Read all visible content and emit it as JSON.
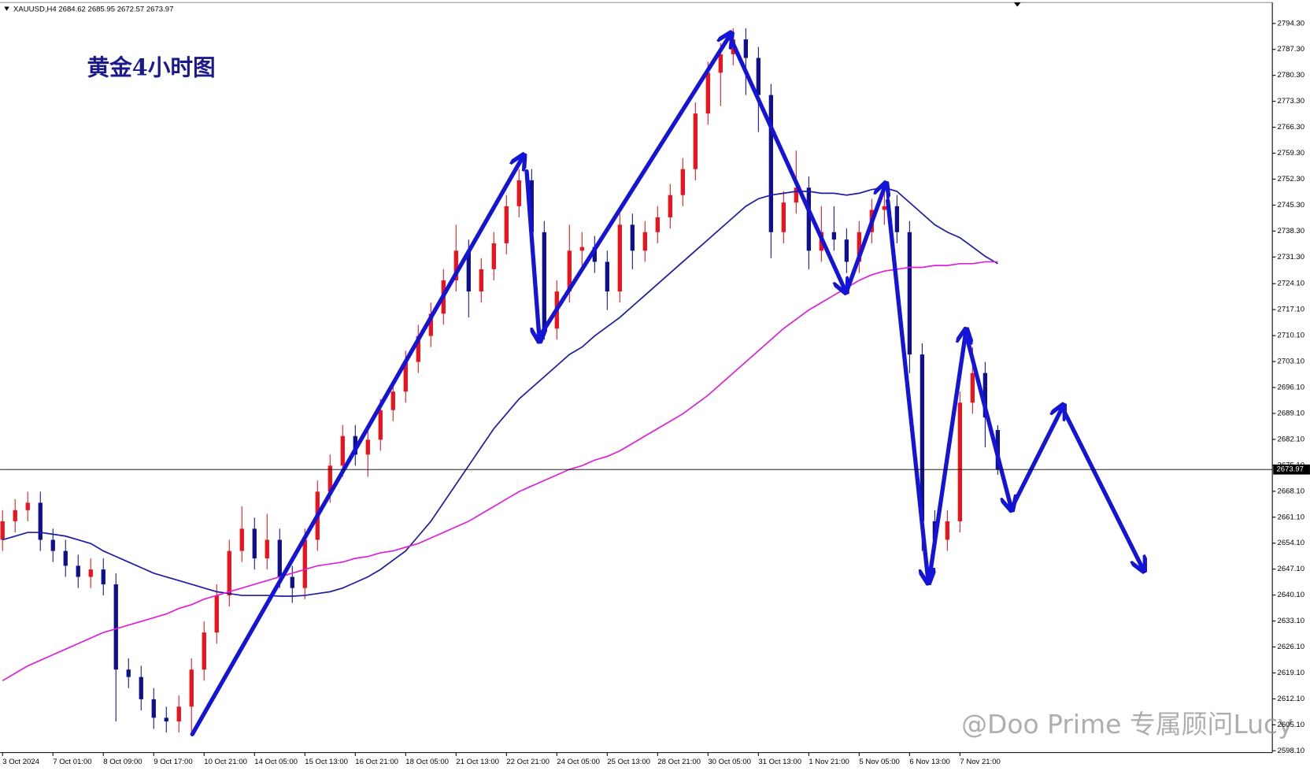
{
  "chart_data": {
    "type": "candlestick",
    "title": "黄金4小时图",
    "symbol": "XAUUSD,H4",
    "watermark": "@Doo Prime 专属顾问Lucy",
    "up_color": "#e8141e",
    "down_color": "#10108a",
    "categories": [
      "3 Oct 2024",
      null,
      null,
      null,
      "7 Oct 01:00",
      null,
      null,
      null,
      "8 Oct 09:00",
      null,
      null,
      null,
      "9 Oct 17:00",
      null,
      null,
      null,
      "10 Oct 21:00",
      null,
      null,
      null,
      "14 Oct 05:00",
      null,
      null,
      null,
      "15 Oct 13:00",
      null,
      null,
      null,
      "16 Oct 21:00",
      null,
      null,
      null,
      "18 Oct 05:00",
      null,
      null,
      null,
      "21 Oct 13:00",
      null,
      null,
      null,
      "22 Oct 21:00",
      null,
      null,
      null,
      "24 Oct 05:00",
      null,
      null,
      null,
      "25 Oct 13:00",
      null,
      null,
      null,
      "28 Oct 21:00",
      null,
      null,
      null,
      "30 Oct 05:00",
      null,
      null,
      null,
      "31 Oct 13:00",
      null,
      null,
      null,
      "1 Nov 21:00",
      null,
      null,
      null,
      "5 Nov 05:00",
      null,
      null,
      null,
      "6 Nov 13:00",
      null,
      null,
      null,
      "7 Nov 21:00",
      null,
      null,
      null
    ],
    "open": [
      2655,
      2660,
      2663,
      2665,
      2655,
      2652,
      2648,
      2645,
      2647,
      2643,
      2620,
      2618,
      2612,
      2607,
      2606,
      2610,
      2620,
      2630,
      2640,
      2652,
      2658,
      2650,
      2655,
      2645,
      2642,
      2655,
      2668,
      2675,
      2683,
      2678,
      2682,
      2690,
      2695,
      2703,
      2710,
      2716,
      2725,
      2733,
      2722,
      2728,
      2735,
      2745,
      2752,
      2738,
      2712,
      2722,
      2733,
      2734,
      2730,
      2722,
      2740,
      2733,
      2738,
      2742,
      2748,
      2755,
      2770,
      2781,
      2786,
      2790,
      2785,
      2775,
      2738,
      2746,
      2750,
      2733,
      2738,
      2736,
      2730,
      2738,
      2744,
      2745,
      2738,
      2705,
      2660,
      2655,
      2660,
      2692,
      2700,
      2684.62
    ],
    "high": [
      2663,
      2666,
      2668,
      2668,
      2658,
      2655,
      2651,
      2650,
      2650,
      2646,
      2623,
      2621,
      2615,
      2610,
      2613,
      2623,
      2633,
      2643,
      2655,
      2664,
      2661,
      2662,
      2658,
      2648,
      2658,
      2671,
      2678,
      2686,
      2686,
      2685,
      2693,
      2698,
      2706,
      2713,
      2719,
      2728,
      2740,
      2736,
      2731,
      2738,
      2748,
      2755,
      2755,
      2741,
      2725,
      2740,
      2738,
      2737,
      2733,
      2743,
      2743,
      2741,
      2745,
      2751,
      2758,
      2773,
      2784,
      2789,
      2793,
      2793,
      2788,
      2778,
      2749,
      2760,
      2753,
      2745,
      2745,
      2739,
      2741,
      2747,
      2750,
      2748,
      2741,
      2708,
      2663,
      2663,
      2695,
      2707,
      2703,
      2685.95
    ],
    "low": [
      2652,
      2657,
      2660,
      2652,
      2649,
      2645,
      2642,
      2642,
      2640,
      2606,
      2615,
      2609,
      2604,
      2603,
      2603,
      2603,
      2617,
      2627,
      2637,
      2649,
      2647,
      2647,
      2642,
      2638,
      2639,
      2652,
      2665,
      2672,
      2675,
      2672,
      2679,
      2687,
      2692,
      2700,
      2707,
      2713,
      2722,
      2715,
      2719,
      2725,
      2732,
      2742,
      2735,
      2709,
      2709,
      2719,
      2728,
      2727,
      2717,
      2719,
      2728,
      2730,
      2735,
      2739,
      2745,
      2752,
      2767,
      2772,
      2783,
      2775,
      2765,
      2731,
      2735,
      2743,
      2728,
      2730,
      2733,
      2727,
      2727,
      2735,
      2740,
      2735,
      2700,
      2652,
      2652,
      2652,
      2657,
      2689,
      2680,
      2672.57
    ],
    "close": [
      2660,
      2663,
      2665,
      2655,
      2652,
      2648,
      2645,
      2647,
      2643,
      2620,
      2618,
      2612,
      2607,
      2606,
      2610,
      2620,
      2630,
      2640,
      2652,
      2658,
      2650,
      2655,
      2645,
      2642,
      2655,
      2668,
      2675,
      2683,
      2678,
      2682,
      2690,
      2695,
      2703,
      2710,
      2716,
      2725,
      2733,
      2722,
      2728,
      2735,
      2745,
      2752,
      2738,
      2712,
      2722,
      2733,
      2734,
      2730,
      2722,
      2740,
      2733,
      2738,
      2742,
      2748,
      2755,
      2770,
      2781,
      2786,
      2790,
      2785,
      2775,
      2738,
      2746,
      2750,
      2733,
      2738,
      2736,
      2730,
      2738,
      2744,
      2745,
      2738,
      2705,
      2660,
      2655,
      2660,
      2692,
      2700,
      2688,
      2673.97
    ],
    "lines": [
      {
        "color": "#1c1ca8",
        "values": [
          2655,
          2656,
          2657,
          2657,
          2656.5,
          2656,
          2655,
          2654,
          2652,
          2650.5,
          2649,
          2647.5,
          2646,
          2645,
          2644,
          2643,
          2642,
          2641,
          2640.5,
          2640,
          2640,
          2640,
          2639.8,
          2639.8,
          2640,
          2640.5,
          2641,
          2642,
          2643.5,
          2645,
          2647,
          2649.5,
          2652,
          2656,
          2660,
          2665,
          2670,
          2675,
          2680,
          2685,
          2689,
          2693,
          2696,
          2699,
          2702,
          2705,
          2707,
          2710,
          2712.5,
          2715,
          2718,
          2721,
          2724,
          2727,
          2730,
          2733,
          2736,
          2739,
          2742,
          2745,
          2747,
          2748,
          2748.5,
          2749,
          2749,
          2748.5,
          2748.5,
          2748,
          2748.5,
          2749.5,
          2750,
          2749,
          2746,
          2743,
          2740,
          2738,
          2736.5,
          2734,
          2731.5,
          2729.5
        ]
      },
      {
        "color": "#e020d8",
        "values": [
          2617,
          2619,
          2621,
          2622.5,
          2624,
          2625.5,
          2627,
          2628.5,
          2630,
          2631,
          2632,
          2633,
          2634,
          2635,
          2636.5,
          2637.5,
          2639,
          2640,
          2641,
          2642,
          2643,
          2644,
          2645,
          2646,
          2647,
          2648,
          2648.5,
          2649,
          2650,
          2650.5,
          2651.5,
          2652,
          2653,
          2654,
          2655.5,
          2657,
          2658.5,
          2660,
          2662,
          2664,
          2666,
          2668,
          2669.5,
          2671,
          2672.5,
          2674,
          2675,
          2676.5,
          2677.5,
          2679,
          2681,
          2683,
          2685,
          2687,
          2689,
          2691.5,
          2694,
          2697,
          2700,
          2703,
          2706,
          2709,
          2712,
          2714.5,
          2717,
          2719,
          2721,
          2723,
          2725,
          2726.5,
          2727.5,
          2728,
          2728.5,
          2728.5,
          2729,
          2729,
          2729.5,
          2729.5,
          2730,
          2730
        ]
      }
    ],
    "ylim": [
      2597.6,
      2799.5
    ],
    "yticks": [
      {
        "value": 2598.1,
        "label": "2598.10"
      },
      {
        "value": 2605.1,
        "label": "2605.10"
      },
      {
        "value": 2612.1,
        "label": "2612.10"
      },
      {
        "value": 2619.1,
        "label": "2619.10"
      },
      {
        "value": 2626.1,
        "label": "2626.10"
      },
      {
        "value": 2633.1,
        "label": "2633.10"
      },
      {
        "value": 2640.1,
        "label": "2640.10"
      },
      {
        "value": 2647.1,
        "label": "2647.10"
      },
      {
        "value": 2654.1,
        "label": "2654.10"
      },
      {
        "value": 2661.1,
        "label": "2661.10"
      },
      {
        "value": 2668.1,
        "label": "2668.10"
      },
      {
        "value": 2675.1,
        "label": "2675.10"
      },
      {
        "value": 2682.1,
        "label": "2682.10"
      },
      {
        "value": 2689.1,
        "label": "2689.10"
      },
      {
        "value": 2696.1,
        "label": "2696.10"
      },
      {
        "value": 2703.1,
        "label": "2703.10"
      },
      {
        "value": 2710.1,
        "label": "2710.10"
      },
      {
        "value": 2717.1,
        "label": "2717.10"
      },
      {
        "value": 2724.1,
        "label": "2724.10"
      },
      {
        "value": 2731.3,
        "label": "2731.30"
      },
      {
        "value": 2738.3,
        "label": "2738.30"
      },
      {
        "value": 2745.3,
        "label": "2745.30"
      },
      {
        "value": 2752.3,
        "label": "2752.30"
      },
      {
        "value": 2759.3,
        "label": "2759.30"
      },
      {
        "value": 2766.3,
        "label": "2766.30"
      },
      {
        "value": 2773.3,
        "label": "2773.30"
      },
      {
        "value": 2780.3,
        "label": "2780.30"
      },
      {
        "value": 2787.3,
        "label": "2787.30"
      },
      {
        "value": 2794.3,
        "label": "2794.30"
      }
    ]
  }
}
